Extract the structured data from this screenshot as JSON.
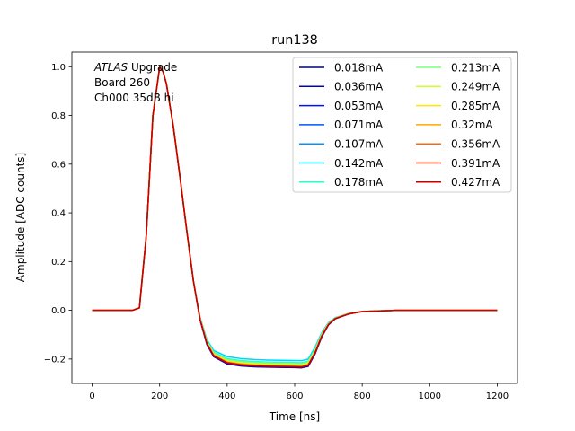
{
  "chart_data": {
    "type": "line",
    "title": "run138",
    "xlabel": "Time [ns]",
    "ylabel": "Amplitude [ADC counts]",
    "xlim": [
      -60,
      1260
    ],
    "ylim": [
      -0.3,
      1.06
    ],
    "xticks": [
      0,
      200,
      400,
      600,
      800,
      1000,
      1200
    ],
    "yticks": [
      -0.2,
      0.0,
      0.2,
      0.4,
      0.6,
      0.8,
      1.0
    ],
    "xtick_labels": [
      "0",
      "200",
      "400",
      "600",
      "800",
      "1000",
      "1200"
    ],
    "ytick_labels": [
      "−0.2",
      "0.0",
      "0.2",
      "0.4",
      "0.6",
      "0.8",
      "1.0"
    ],
    "annotation": {
      "lines": [
        {
          "italic": "ATLAS",
          "normal": " Upgrade"
        },
        {
          "italic": "",
          "normal": " Board 260"
        },
        {
          "italic": "",
          "normal": " Ch000 35dB hi"
        }
      ]
    },
    "legend_position": "upper right",
    "legend_columns": 2,
    "grid": false,
    "x": [
      0,
      40,
      80,
      120,
      140,
      160,
      180,
      200,
      210,
      220,
      240,
      260,
      280,
      300,
      320,
      340,
      360,
      400,
      440,
      480,
      520,
      560,
      600,
      620,
      640,
      660,
      680,
      700,
      720,
      760,
      800,
      900,
      1000,
      1100,
      1200
    ],
    "series": [
      {
        "name": "0.018mA",
        "color": "#00007f",
        "values": [
          0,
          0,
          0,
          0,
          0.01,
          0.3,
          0.8,
          0.998,
          0.98,
          0.93,
          0.76,
          0.55,
          0.33,
          0.12,
          -0.04,
          -0.14,
          -0.19,
          -0.22,
          -0.228,
          -0.232,
          -0.233,
          -0.234,
          -0.235,
          -0.236,
          -0.23,
          -0.18,
          -0.11,
          -0.06,
          -0.035,
          -0.015,
          -0.005,
          0,
          0,
          0,
          0
        ]
      },
      {
        "name": "0.036mA",
        "color": "#0000c4",
        "values": [
          0,
          0,
          0,
          0,
          0.01,
          0.3,
          0.8,
          0.998,
          0.98,
          0.93,
          0.76,
          0.55,
          0.33,
          0.12,
          -0.04,
          -0.14,
          -0.19,
          -0.219,
          -0.227,
          -0.231,
          -0.232,
          -0.233,
          -0.234,
          -0.235,
          -0.229,
          -0.178,
          -0.108,
          -0.06,
          -0.035,
          -0.015,
          -0.005,
          0,
          0,
          0,
          0
        ]
      },
      {
        "name": "0.053mA",
        "color": "#0010ff",
        "values": [
          0,
          0,
          0,
          0,
          0.01,
          0.3,
          0.8,
          0.998,
          0.98,
          0.93,
          0.76,
          0.55,
          0.33,
          0.12,
          -0.04,
          -0.138,
          -0.188,
          -0.217,
          -0.225,
          -0.229,
          -0.23,
          -0.231,
          -0.232,
          -0.233,
          -0.227,
          -0.176,
          -0.106,
          -0.058,
          -0.034,
          -0.015,
          -0.005,
          0,
          0,
          0,
          0
        ]
      },
      {
        "name": "0.071mA",
        "color": "#0054ff",
        "values": [
          0,
          0,
          0,
          0,
          0.01,
          0.3,
          0.8,
          0.998,
          0.98,
          0.93,
          0.76,
          0.55,
          0.33,
          0.12,
          -0.038,
          -0.135,
          -0.185,
          -0.214,
          -0.222,
          -0.226,
          -0.227,
          -0.228,
          -0.229,
          -0.23,
          -0.224,
          -0.173,
          -0.104,
          -0.057,
          -0.033,
          -0.014,
          -0.005,
          0,
          0,
          0,
          0
        ]
      },
      {
        "name": "0.107mA",
        "color": "#0094ff",
        "values": [
          0,
          0,
          0,
          0,
          0.01,
          0.3,
          0.8,
          0.998,
          0.98,
          0.93,
          0.76,
          0.55,
          0.33,
          0.12,
          -0.035,
          -0.13,
          -0.178,
          -0.206,
          -0.214,
          -0.218,
          -0.219,
          -0.22,
          -0.221,
          -0.222,
          -0.216,
          -0.166,
          -0.1,
          -0.055,
          -0.032,
          -0.014,
          -0.005,
          0,
          0,
          0,
          0
        ]
      },
      {
        "name": "0.142mA",
        "color": "#00d4ff",
        "values": [
          0,
          0,
          0,
          0,
          0.01,
          0.3,
          0.8,
          0.998,
          0.98,
          0.93,
          0.76,
          0.55,
          0.33,
          0.12,
          -0.03,
          -0.12,
          -0.165,
          -0.19,
          -0.198,
          -0.202,
          -0.204,
          -0.205,
          -0.206,
          -0.207,
          -0.2,
          -0.152,
          -0.092,
          -0.05,
          -0.03,
          -0.013,
          -0.004,
          0,
          0,
          0,
          0
        ]
      },
      {
        "name": "0.178mA",
        "color": "#29ffce",
        "values": [
          0,
          0,
          0,
          0,
          0.01,
          0.3,
          0.8,
          0.998,
          0.98,
          0.93,
          0.76,
          0.55,
          0.33,
          0.12,
          -0.032,
          -0.125,
          -0.172,
          -0.198,
          -0.206,
          -0.21,
          -0.212,
          -0.213,
          -0.214,
          -0.215,
          -0.208,
          -0.16,
          -0.096,
          -0.052,
          -0.031,
          -0.013,
          -0.004,
          0,
          0,
          0,
          0
        ]
      },
      {
        "name": "0.213mA",
        "color": "#7dff7a",
        "values": [
          0,
          0,
          0,
          0,
          0.01,
          0.3,
          0.8,
          0.998,
          0.98,
          0.93,
          0.76,
          0.55,
          0.33,
          0.12,
          -0.034,
          -0.128,
          -0.176,
          -0.203,
          -0.211,
          -0.215,
          -0.217,
          -0.218,
          -0.219,
          -0.22,
          -0.213,
          -0.164,
          -0.099,
          -0.054,
          -0.032,
          -0.014,
          -0.005,
          0,
          0,
          0,
          0
        ]
      },
      {
        "name": "0.249mA",
        "color": "#ceff29",
        "values": [
          0,
          0,
          0,
          0,
          0.01,
          0.3,
          0.8,
          0.998,
          0.98,
          0.93,
          0.76,
          0.55,
          0.33,
          0.12,
          -0.035,
          -0.13,
          -0.179,
          -0.207,
          -0.215,
          -0.219,
          -0.221,
          -0.222,
          -0.223,
          -0.224,
          -0.217,
          -0.167,
          -0.101,
          -0.055,
          -0.032,
          -0.014,
          -0.005,
          0,
          0,
          0,
          0
        ]
      },
      {
        "name": "0.285mA",
        "color": "#ffe500",
        "values": [
          0,
          0,
          0,
          0,
          0.01,
          0.3,
          0.8,
          0.998,
          0.98,
          0.93,
          0.76,
          0.55,
          0.33,
          0.12,
          -0.036,
          -0.132,
          -0.181,
          -0.21,
          -0.218,
          -0.222,
          -0.224,
          -0.225,
          -0.226,
          -0.227,
          -0.22,
          -0.17,
          -0.103,
          -0.056,
          -0.033,
          -0.014,
          -0.005,
          0,
          0,
          0,
          0
        ]
      },
      {
        "name": "0.32mA",
        "color": "#ffa600",
        "values": [
          0,
          0,
          0,
          0,
          0.01,
          0.3,
          0.8,
          0.998,
          0.98,
          0.93,
          0.76,
          0.55,
          0.33,
          0.12,
          -0.037,
          -0.134,
          -0.183,
          -0.212,
          -0.22,
          -0.224,
          -0.226,
          -0.227,
          -0.228,
          -0.229,
          -0.222,
          -0.172,
          -0.104,
          -0.057,
          -0.033,
          -0.014,
          -0.005,
          0,
          0,
          0,
          0
        ]
      },
      {
        "name": "0.356mA",
        "color": "#ff6800",
        "values": [
          0,
          0,
          0,
          0,
          0.01,
          0.3,
          0.8,
          0.998,
          0.98,
          0.93,
          0.76,
          0.55,
          0.33,
          0.12,
          -0.038,
          -0.135,
          -0.185,
          -0.214,
          -0.222,
          -0.226,
          -0.228,
          -0.229,
          -0.23,
          -0.231,
          -0.224,
          -0.174,
          -0.105,
          -0.058,
          -0.034,
          -0.015,
          -0.005,
          0,
          0,
          0,
          0
        ]
      },
      {
        "name": "0.391mA",
        "color": "#ff2900",
        "values": [
          0,
          0,
          0,
          0,
          0.01,
          0.3,
          0.8,
          0.998,
          0.98,
          0.93,
          0.76,
          0.55,
          0.33,
          0.12,
          -0.039,
          -0.136,
          -0.186,
          -0.215,
          -0.223,
          -0.227,
          -0.229,
          -0.23,
          -0.231,
          -0.232,
          -0.225,
          -0.175,
          -0.106,
          -0.058,
          -0.034,
          -0.015,
          -0.005,
          0,
          0,
          0,
          0
        ]
      },
      {
        "name": "0.427mA",
        "color": "#c40000",
        "values": [
          0,
          0,
          0,
          0,
          0.01,
          0.3,
          0.8,
          0.998,
          0.98,
          0.93,
          0.76,
          0.55,
          0.33,
          0.12,
          -0.039,
          -0.137,
          -0.187,
          -0.216,
          -0.224,
          -0.228,
          -0.23,
          -0.231,
          -0.232,
          -0.233,
          -0.226,
          -0.176,
          -0.107,
          -0.059,
          -0.034,
          -0.015,
          -0.005,
          0,
          0,
          0,
          0
        ]
      }
    ]
  }
}
